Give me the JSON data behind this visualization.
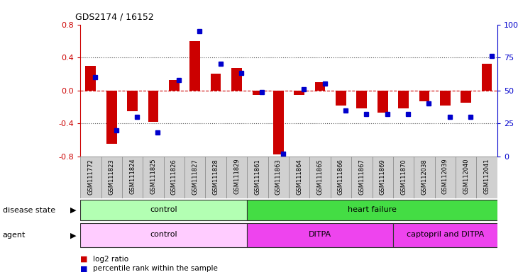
{
  "title": "GDS2174 / 16152",
  "samples": [
    "GSM111772",
    "GSM111823",
    "GSM111824",
    "GSM111825",
    "GSM111826",
    "GSM111827",
    "GSM111828",
    "GSM111829",
    "GSM111861",
    "GSM111863",
    "GSM111864",
    "GSM111865",
    "GSM111866",
    "GSM111867",
    "GSM111869",
    "GSM111870",
    "GSM112038",
    "GSM112039",
    "GSM112040",
    "GSM112041"
  ],
  "log2_ratio": [
    0.3,
    -0.65,
    -0.25,
    -0.38,
    0.13,
    0.6,
    0.2,
    0.27,
    -0.05,
    -0.78,
    -0.05,
    0.1,
    -0.18,
    -0.22,
    -0.27,
    -0.22,
    -0.13,
    -0.18,
    -0.15,
    0.32
  ],
  "percentile": [
    60,
    20,
    30,
    18,
    58,
    95,
    70,
    63,
    49,
    2,
    51,
    55,
    35,
    32,
    32,
    32,
    40,
    30,
    30,
    76
  ],
  "disease_state_groups": [
    {
      "label": "control",
      "start": 0,
      "end": 8,
      "color": "#b3ffb3"
    },
    {
      "label": "heart failure",
      "start": 8,
      "end": 20,
      "color": "#44dd44"
    }
  ],
  "agent_groups": [
    {
      "label": "control",
      "start": 0,
      "end": 8,
      "color": "#ffccff"
    },
    {
      "label": "DITPA",
      "start": 8,
      "end": 15,
      "color": "#ee44ee"
    },
    {
      "label": "captopril and DITPA",
      "start": 15,
      "end": 20,
      "color": "#ee44ee"
    }
  ],
  "ylim": [
    -0.8,
    0.8
  ],
  "yticks_left": [
    -0.8,
    -0.4,
    0.0,
    0.4,
    0.8
  ],
  "yticks_right": [
    0,
    25,
    50,
    75,
    100
  ],
  "bar_color": "#cc0000",
  "dot_color": "#0000cc",
  "background_color": "#ffffff",
  "dotted_line_color": "#555555",
  "zero_line_color": "#cc0000"
}
